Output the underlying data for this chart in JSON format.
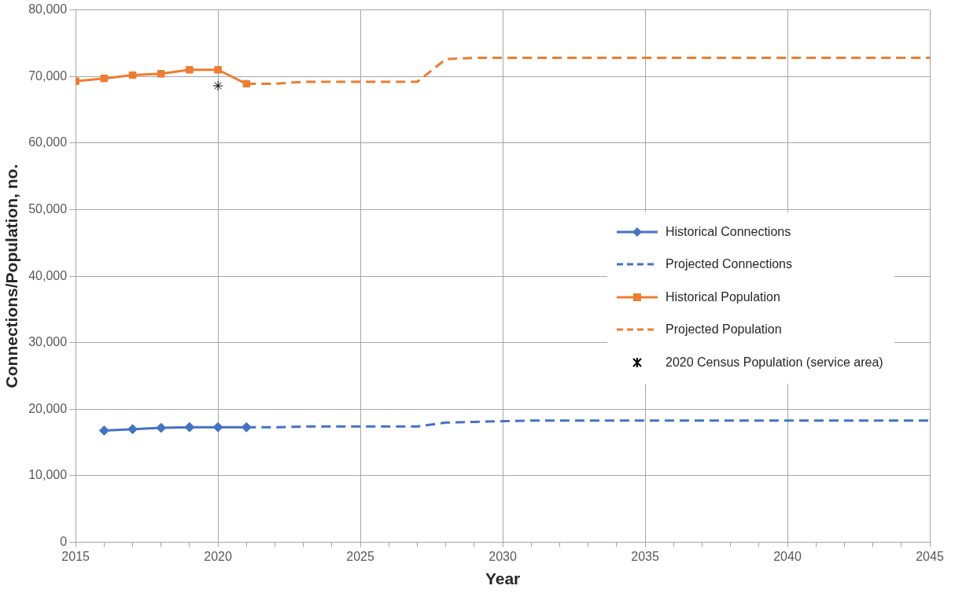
{
  "chart_data": {
    "type": "line",
    "xlabel": "Year",
    "ylabel": "Connections/Population, no.",
    "xlim": [
      2015,
      2045
    ],
    "xticks": [
      2015,
      {
        "value": 2016,
        "label": null
      },
      {
        "value": 2017,
        "label": null
      },
      {
        "value": 2018,
        "label": null
      },
      {
        "value": 2019,
        "label": null
      },
      2020,
      {
        "value": 2021,
        "label": null
      },
      {
        "value": 2022,
        "label": null
      },
      {
        "value": 2023,
        "label": null
      },
      {
        "value": 2024,
        "label": null
      },
      2025,
      {
        "value": 2026,
        "label": null
      },
      {
        "value": 2027,
        "label": null
      },
      {
        "value": 2028,
        "label": null
      },
      {
        "value": 2029,
        "label": null
      },
      2030,
      {
        "value": 2031,
        "label": null
      },
      {
        "value": 2032,
        "label": null
      },
      {
        "value": 2033,
        "label": null
      },
      {
        "value": 2034,
        "label": null
      },
      2035,
      {
        "value": 2036,
        "label": null
      },
      {
        "value": 2037,
        "label": null
      },
      {
        "value": 2038,
        "label": null
      },
      {
        "value": 2039,
        "label": null
      },
      2040,
      {
        "value": 2041,
        "label": null
      },
      {
        "value": 2042,
        "label": null
      },
      {
        "value": 2043,
        "label": null
      },
      {
        "value": 2044,
        "label": null
      },
      2045
    ],
    "ylim": [
      0,
      80000
    ],
    "yticks": [
      0,
      {
        "value": 10000,
        "label": "10,000"
      },
      {
        "value": 20000,
        "label": "20,000"
      },
      {
        "value": 30000,
        "label": "30,000"
      },
      {
        "value": 40000,
        "label": "40,000"
      },
      {
        "value": 50000,
        "label": "50,000"
      },
      {
        "value": 60000,
        "label": "60,000"
      },
      {
        "value": 70000,
        "label": "70,000"
      },
      {
        "value": 80000,
        "label": "80,000"
      }
    ],
    "grid": true,
    "legend": "right",
    "series": [
      {
        "name": "Historical Connections",
        "color": "#4472c4",
        "marker": "diamond",
        "line_style": "solid",
        "x": [
          2016,
          2017,
          2018,
          2019,
          2020,
          2021
        ],
        "values": [
          16800,
          17000,
          17200,
          17300,
          17300,
          17300
        ]
      },
      {
        "name": "Projected Connections",
        "color": "#4472c4",
        "marker": "none",
        "line_style": "dashed",
        "x": [
          2021,
          2022,
          2023,
          2024,
          2025,
          2026,
          2027,
          2028,
          2029,
          2030,
          2031,
          2032,
          2033,
          2034,
          2035,
          2036,
          2037,
          2038,
          2039,
          2040,
          2041,
          2042,
          2043,
          2044,
          2045
        ],
        "values": [
          17300,
          17300,
          17400,
          17400,
          17400,
          17400,
          17400,
          18000,
          18100,
          18200,
          18300,
          18300,
          18300,
          18300,
          18300,
          18300,
          18300,
          18300,
          18300,
          18300,
          18300,
          18300,
          18300,
          18300,
          18300
        ]
      },
      {
        "name": "Historical Population",
        "color": "#ed7d31",
        "marker": "square",
        "line_style": "solid",
        "x": [
          2015,
          2016,
          2017,
          2018,
          2019,
          2020,
          2021
        ],
        "values": [
          69300,
          69700,
          70200,
          70400,
          71000,
          71000,
          68900
        ]
      },
      {
        "name": "Projected Population",
        "color": "#ed7d31",
        "marker": "none",
        "line_style": "dashed",
        "x": [
          2021,
          2022,
          2023,
          2024,
          2025,
          2026,
          2027,
          2028,
          2029,
          2030,
          2031,
          2032,
          2033,
          2034,
          2035,
          2036,
          2037,
          2038,
          2039,
          2040,
          2041,
          2042,
          2043,
          2044,
          2045
        ],
        "values": [
          68900,
          68900,
          69200,
          69200,
          69200,
          69200,
          69200,
          72600,
          72800,
          72800,
          72800,
          72800,
          72800,
          72800,
          72800,
          72800,
          72800,
          72800,
          72800,
          72800,
          72800,
          72800,
          72800,
          72800,
          72800
        ]
      },
      {
        "name": "2020 Census Population (service area)",
        "type": "scatter",
        "color": "#000000",
        "marker": "cross",
        "x": [
          2020
        ],
        "values": [
          68600
        ]
      }
    ]
  }
}
